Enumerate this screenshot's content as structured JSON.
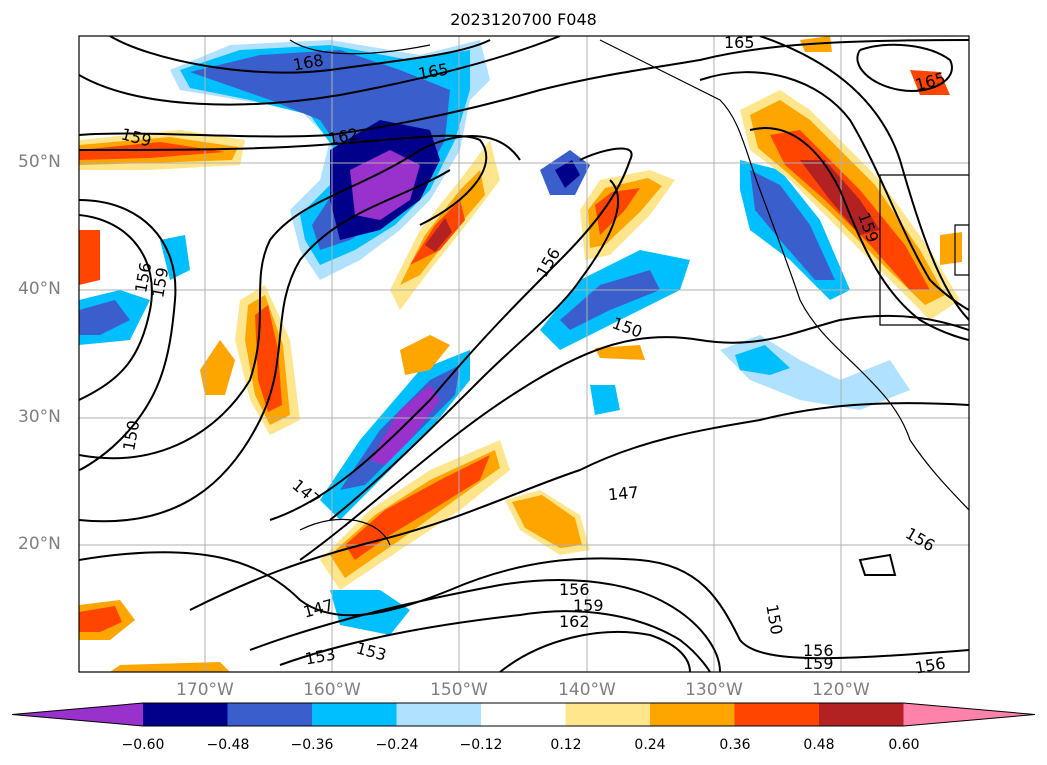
{
  "title": "2023120700 F048",
  "lat_labels": [
    "50°N",
    "40°N",
    "30°N",
    "20°N"
  ],
  "lon_labels": [
    "170°W",
    "160°W",
    "150°W",
    "140°W",
    "130°W",
    "120°W"
  ],
  "contour_labels": [
    "168",
    "165",
    "165",
    "165",
    "162",
    "159",
    "159",
    "156",
    "156",
    "153",
    "150",
    "150",
    "147",
    "147",
    "147",
    "156",
    "159",
    "162",
    "150",
    "156",
    "159",
    "156",
    "153",
    "156",
    "159"
  ],
  "colorbar": {
    "ticks": [
      "−0.60",
      "−0.48",
      "−0.36",
      "−0.24",
      "−0.12",
      "0.12",
      "0.24",
      "0.36",
      "0.48",
      "0.60"
    ],
    "colors": [
      "#9932CC",
      "#00008B",
      "#3A5FCD",
      "#00BFFF",
      "#B0E2FF",
      "#FFFFFF",
      "#FFE68C",
      "#FFA500",
      "#FF4500",
      "#B22222",
      "#FF82AB"
    ]
  }
}
